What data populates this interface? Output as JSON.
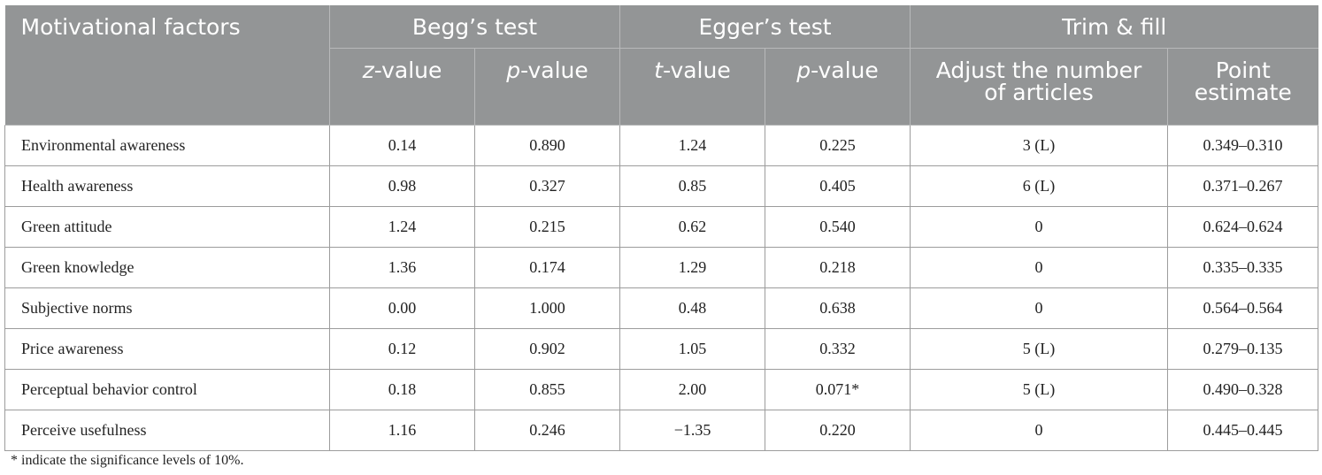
{
  "header": {
    "motivational_factors": "Motivational factors",
    "beggs_test": "Begg’s test",
    "eggers_test": "Egger’s test",
    "trim_fill": "Trim & fill",
    "z_letter": "z",
    "t_letter": "t",
    "p_letter": "p",
    "value_suffix": "-value",
    "adjust_line1": "Adjust the number",
    "adjust_line2": "of articles",
    "point_line1": "Point",
    "point_line2": "estimate"
  },
  "rows": [
    {
      "factor": "Environmental awareness",
      "z": "0.14",
      "p_begg": "0.890",
      "t": "1.24",
      "p_egger": "0.225",
      "adjust": "3 (L)",
      "point": "0.349–0.310"
    },
    {
      "factor": "Health awareness",
      "z": "0.98",
      "p_begg": "0.327",
      "t": "0.85",
      "p_egger": "0.405",
      "adjust": "6 (L)",
      "point": "0.371–0.267"
    },
    {
      "factor": "Green attitude",
      "z": "1.24",
      "p_begg": "0.215",
      "t": "0.62",
      "p_egger": "0.540",
      "adjust": "0",
      "point": "0.624–0.624"
    },
    {
      "factor": "Green knowledge",
      "z": "1.36",
      "p_begg": "0.174",
      "t": "1.29",
      "p_egger": "0.218",
      "adjust": "0",
      "point": "0.335–0.335"
    },
    {
      "factor": "Subjective norms",
      "z": "0.00",
      "p_begg": "1.000",
      "t": "0.48",
      "p_egger": "0.638",
      "adjust": "0",
      "point": "0.564–0.564"
    },
    {
      "factor": "Price awareness",
      "z": "0.12",
      "p_begg": "0.902",
      "t": "1.05",
      "p_egger": "0.332",
      "adjust": "5 (L)",
      "point": "0.279–0.135"
    },
    {
      "factor": "Perceptual behavior control",
      "z": "0.18",
      "p_begg": "0.855",
      "t": "2.00",
      "p_egger": "0.071*",
      "adjust": "5 (L)",
      "point": "0.490–0.328"
    },
    {
      "factor": "Perceive usefulness",
      "z": "1.16",
      "p_begg": "0.246",
      "t": "−1.35",
      "p_egger": "0.220",
      "adjust": "0",
      "point": "0.445–0.445"
    }
  ],
  "footnote": "* indicate the significance levels of 10%."
}
